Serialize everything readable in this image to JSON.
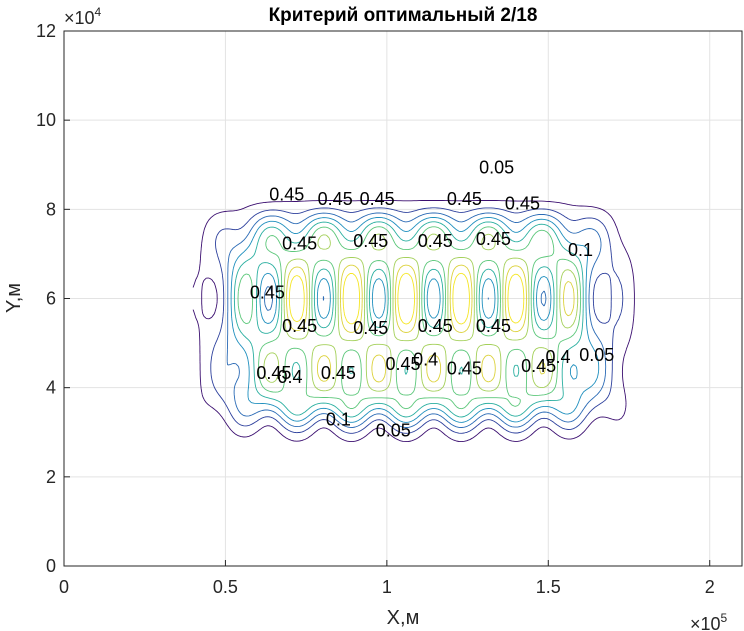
{
  "chart_data": {
    "type": "contour",
    "title": "Критерий оптимальный 2/18",
    "xlabel": "X,м",
    "ylabel": "Y,м",
    "xlim": [
      0,
      210000
    ],
    "ylim": [
      0,
      120000
    ],
    "x_ticks": [
      0,
      50000,
      100000,
      150000,
      200000
    ],
    "x_tick_labels": [
      "0",
      "0.5",
      "1",
      "1.5",
      "2"
    ],
    "y_ticks": [
      0,
      20000,
      40000,
      60000,
      80000,
      100000,
      120000
    ],
    "y_tick_labels": [
      "0",
      "2",
      "4",
      "6",
      "8",
      "10",
      "12"
    ],
    "x_multiplier": "×10",
    "x_exponent": "5",
    "y_multiplier": "×10",
    "y_exponent": "4",
    "grid": true,
    "levels": [
      0.05,
      0.1,
      0.15,
      0.2,
      0.25,
      0.3,
      0.35,
      0.4,
      0.45
    ],
    "level_colors": [
      "#3b0f70",
      "#2c3f9c",
      "#2a6ab5",
      "#1f8fbe",
      "#2aafa0",
      "#5cc77a",
      "#a4d05a",
      "#dcd23c",
      "#f5e624"
    ],
    "contour_region": {
      "x": [
        52000,
        165000
      ],
      "y": [
        33000,
        78000
      ]
    },
    "sources": {
      "x": [
        55000,
        72000,
        88000,
        105000,
        122000,
        140000,
        158000
      ],
      "y": [
        44000,
        60000,
        73000
      ]
    },
    "contour_labels": [
      {
        "text": "0.05",
        "x": 134000,
        "y": 88000
      },
      {
        "text": "0.45",
        "x": 84000,
        "y": 81000
      },
      {
        "text": "0.45",
        "x": 73000,
        "y": 71000
      },
      {
        "text": "0.45",
        "x": 95000,
        "y": 71500
      },
      {
        "text": "0.45",
        "x": 115000,
        "y": 71500
      },
      {
        "text": "0.45",
        "x": 133000,
        "y": 72000
      },
      {
        "text": "0.45",
        "x": 63000,
        "y": 60000
      },
      {
        "text": "0.45",
        "x": 73000,
        "y": 52500
      },
      {
        "text": "0.45",
        "x": 95000,
        "y": 52000
      },
      {
        "text": "0.45",
        "x": 115000,
        "y": 52500
      },
      {
        "text": "0.45",
        "x": 133000,
        "y": 52500
      },
      {
        "text": "0.45",
        "x": 65000,
        "y": 42000
      },
      {
        "text": "0.4",
        "x": 70000,
        "y": 41000
      },
      {
        "text": "0.45",
        "x": 85000,
        "y": 42000
      },
      {
        "text": "0.45",
        "x": 105000,
        "y": 44000
      },
      {
        "text": "0.4",
        "x": 112000,
        "y": 45000
      },
      {
        "text": "0.45",
        "x": 124000,
        "y": 43000
      },
      {
        "text": "0.45",
        "x": 147000,
        "y": 43500
      },
      {
        "text": "0.4",
        "x": 153000,
        "y": 45500
      },
      {
        "text": "0.05",
        "x": 165000,
        "y": 46000
      },
      {
        "text": "0.1",
        "x": 85000,
        "y": 31500
      },
      {
        "text": "0.05",
        "x": 102000,
        "y": 29000
      },
      {
        "text": "0.45",
        "x": 97000,
        "y": 81000
      },
      {
        "text": "0.45",
        "x": 124000,
        "y": 81000
      },
      {
        "text": "0.45",
        "x": 142000,
        "y": 80000
      },
      {
        "text": "0.1",
        "x": 160000,
        "y": 69500
      },
      {
        "text": "0.45",
        "x": 69000,
        "y": 82000
      }
    ]
  }
}
